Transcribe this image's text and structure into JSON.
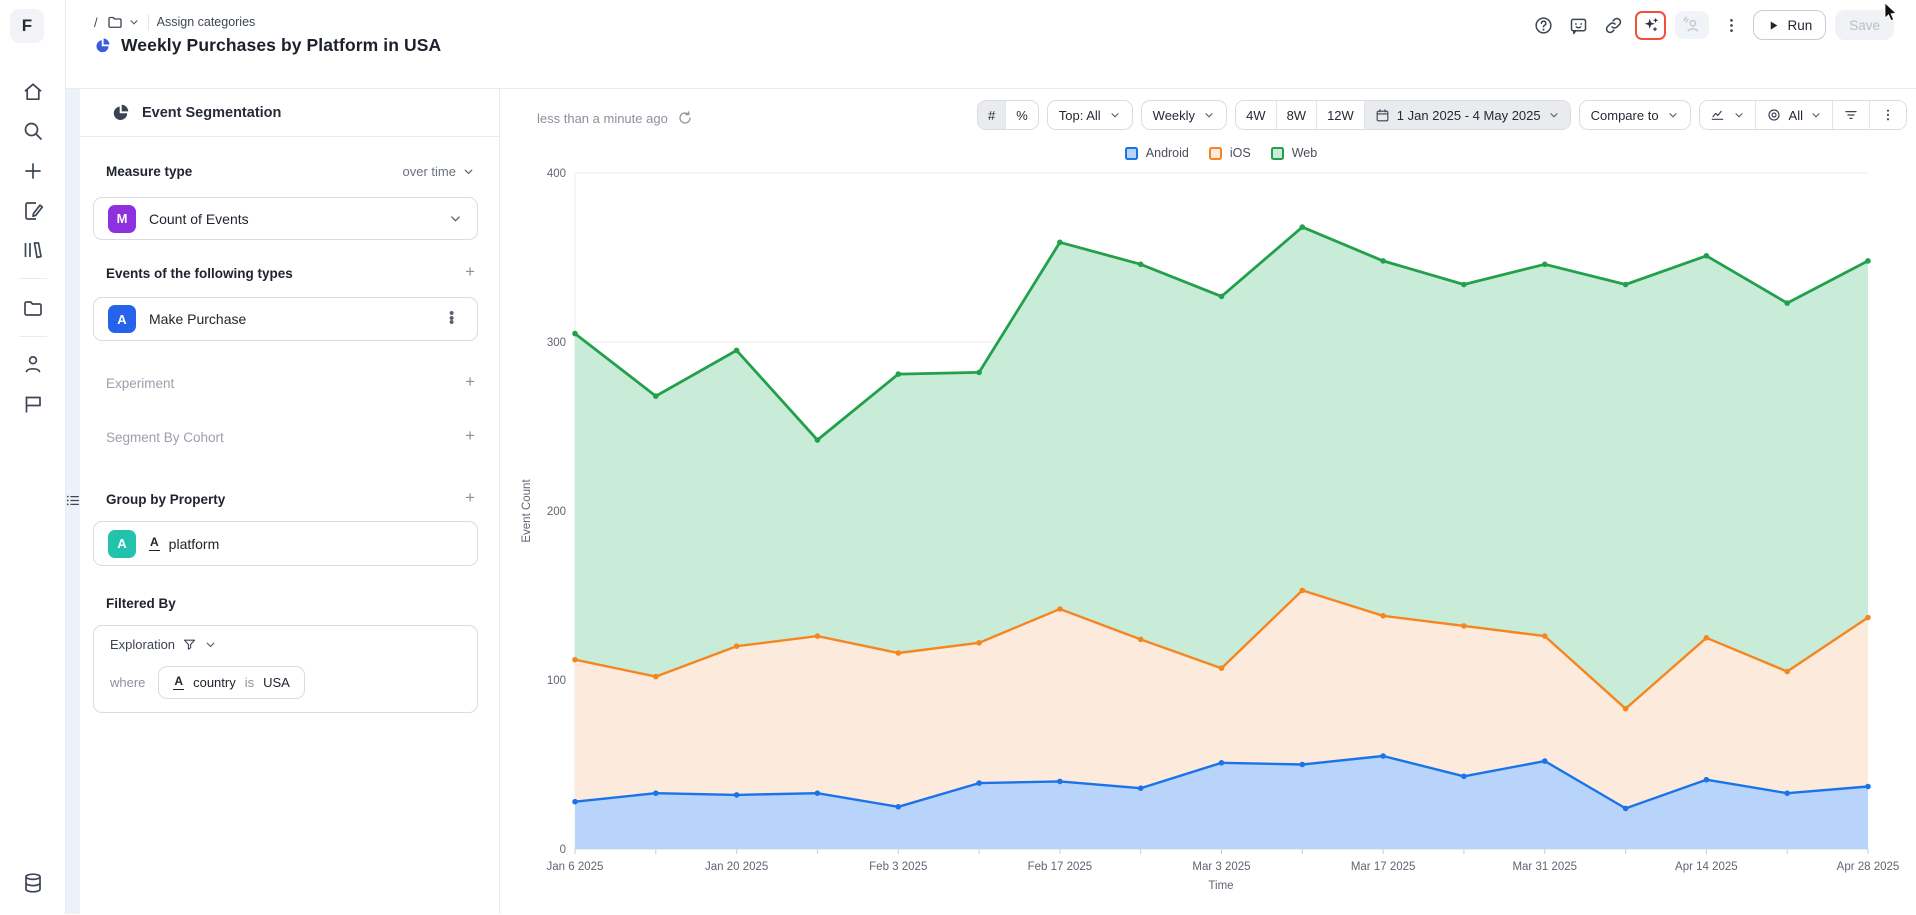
{
  "brand": {
    "logo_letter": "F"
  },
  "sidebar": {
    "icons": [
      "home",
      "search",
      "create-new",
      "compose-note",
      "library",
      "projects-folder",
      "user",
      "flag",
      "data-sources"
    ]
  },
  "header": {
    "breadcrumb": {
      "root": "/",
      "section": "Assign categories"
    },
    "title": "Weekly Purchases by Platform in USA",
    "actions": {
      "run": "Run",
      "save": "Save"
    },
    "icon_names": [
      "help-icon",
      "feedback-icon",
      "link-icon",
      "sparkles-icon",
      "collaborators-icon",
      "more-icon"
    ]
  },
  "panel": {
    "heading": "Event Segmentation",
    "measure": {
      "label": "Measure type",
      "mode": "over time",
      "badge": "M",
      "value": "Count of Events"
    },
    "events": {
      "label": "Events of the following types",
      "items": [
        {
          "badge": "A",
          "name": "Make Purchase"
        }
      ]
    },
    "experiment_label": "Experiment",
    "cohort_label": "Segment By Cohort",
    "group_by": {
      "label": "Group by Property",
      "items": [
        {
          "badge": "A",
          "property_glyph": "A",
          "name": "platform"
        }
      ]
    },
    "filtered_by": {
      "label": "Filtered By",
      "scope": "Exploration",
      "where": "where",
      "property_glyph": "A",
      "property": "country",
      "operator": "is",
      "value": "USA"
    }
  },
  "chart_header": {
    "updated": "less than a minute ago",
    "count_toggle": "#",
    "percent_toggle": "%",
    "top_filter": "Top: All",
    "interval": "Weekly",
    "quick_ranges": [
      "4W",
      "8W",
      "12W"
    ],
    "date_range": "1 Jan 2025 - 4 May 2025",
    "compare": "Compare to",
    "series_visibility": "All"
  },
  "colors": {
    "title_icon": "#3b5bdb",
    "highlight_box": "#f2503c",
    "measure_badge": "#8e30dd",
    "event_badge": "#2563eb",
    "group_badge": "#22c3ad"
  },
  "chart_data": {
    "type": "area",
    "stacked": true,
    "title": "Weekly Purchases by Platform in USA",
    "xlabel": "Time",
    "ylabel": "Event Count",
    "ylim": [
      0,
      400
    ],
    "yticks": [
      0,
      100,
      200,
      300,
      400
    ],
    "grid": "horizontal",
    "legend_position": "top",
    "x": [
      "Jan 6 2025",
      "Jan 13 2025",
      "Jan 20 2025",
      "Jan 27 2025",
      "Feb 3 2025",
      "Feb 10 2025",
      "Feb 17 2025",
      "Feb 24 2025",
      "Mar 3 2025",
      "Mar 10 2025",
      "Mar 17 2025",
      "Mar 24 2025",
      "Mar 31 2025",
      "Apr 7 2025",
      "Apr 14 2025",
      "Apr 21 2025",
      "Apr 28 2025"
    ],
    "x_tick_labels": [
      "Jan 6 2025",
      "Jan 20 2025",
      "Feb 3 2025",
      "Feb 17 2025",
      "Mar 3 2025",
      "Mar 17 2025",
      "Mar 31 2025",
      "Apr 14 2025",
      "Apr 28 2025"
    ],
    "series": [
      {
        "name": "Android",
        "line": "#1a73e8",
        "fill": "#b9d4fb",
        "values": [
          28,
          33,
          32,
          33,
          25,
          39,
          40,
          36,
          51,
          50,
          55,
          43,
          52,
          24,
          41,
          33,
          37
        ]
      },
      {
        "name": "iOS",
        "line": "#f5861f",
        "fill": "#fcebdd",
        "values": [
          84,
          69,
          88,
          93,
          91,
          83,
          102,
          88,
          56,
          103,
          83,
          89,
          74,
          59,
          84,
          72,
          100
        ]
      },
      {
        "name": "Web",
        "line": "#22a04b",
        "fill": "#c9ecd9",
        "values": [
          193,
          166,
          175,
          116,
          165,
          160,
          217,
          222,
          220,
          215,
          210,
          202,
          220,
          251,
          226,
          218,
          211
        ]
      }
    ]
  }
}
